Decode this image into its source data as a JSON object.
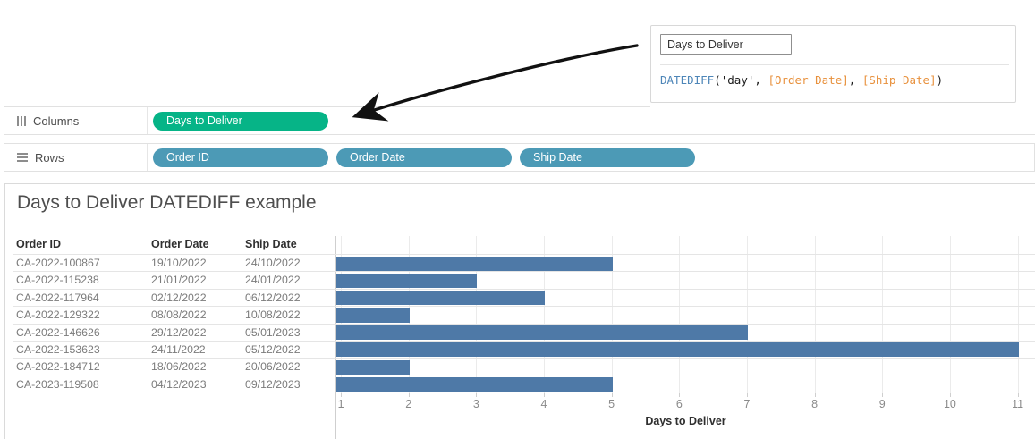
{
  "colors": {
    "measure_pill": "#06b487",
    "dimension_pill": "#4c9ab6",
    "bar": "#4e79a7",
    "function_token": "#4e86b8",
    "field_token": "#e8913d",
    "arrow": "#111111"
  },
  "calc_editor": {
    "field_name_value": "Days to Deliver",
    "formula_tokens": [
      {
        "text": "DATEDIFF",
        "type": "function"
      },
      {
        "text": "('day', ",
        "type": "plain"
      },
      {
        "text": "[Order Date]",
        "type": "field"
      },
      {
        "text": ", ",
        "type": "plain"
      },
      {
        "text": "[Ship Date]",
        "type": "field"
      },
      {
        "text": ")",
        "type": "plain"
      }
    ]
  },
  "shelves": {
    "columns": {
      "label": "Columns",
      "pills": [
        {
          "label": "Days to Deliver",
          "kind": "measure"
        }
      ]
    },
    "rows": {
      "label": "Rows",
      "pills": [
        {
          "label": "Order ID",
          "kind": "dimension"
        },
        {
          "label": "Order Date",
          "kind": "dimension"
        },
        {
          "label": "Ship Date",
          "kind": "dimension"
        }
      ]
    }
  },
  "chart_data": {
    "type": "bar",
    "orientation": "horizontal",
    "title": "Days to Deliver DATEDIFF example",
    "table_headers": [
      "Order ID",
      "Order Date",
      "Ship Date"
    ],
    "rows": [
      {
        "order_id": "CA-2022-100867",
        "order_date": "19/10/2022",
        "ship_date": "24/10/2022",
        "days": 5
      },
      {
        "order_id": "CA-2022-115238",
        "order_date": "21/01/2022",
        "ship_date": "24/01/2022",
        "days": 3
      },
      {
        "order_id": "CA-2022-117964",
        "order_date": "02/12/2022",
        "ship_date": "06/12/2022",
        "days": 4
      },
      {
        "order_id": "CA-2022-129322",
        "order_date": "08/08/2022",
        "ship_date": "10/08/2022",
        "days": 2
      },
      {
        "order_id": "CA-2022-146626",
        "order_date": "29/12/2022",
        "ship_date": "05/01/2023",
        "days": 7
      },
      {
        "order_id": "CA-2022-153623",
        "order_date": "24/11/2022",
        "ship_date": "05/12/2022",
        "days": 11
      },
      {
        "order_id": "CA-2022-184712",
        "order_date": "18/06/2022",
        "ship_date": "20/06/2022",
        "days": 2
      },
      {
        "order_id": "CA-2023-119508",
        "order_date": "04/12/2023",
        "ship_date": "09/12/2023",
        "days": 5
      }
    ],
    "categories": [
      "CA-2022-100867",
      "CA-2022-115238",
      "CA-2022-117964",
      "CA-2022-129322",
      "CA-2022-146626",
      "CA-2022-153623",
      "CA-2022-184712",
      "CA-2023-119508"
    ],
    "values": [
      5,
      3,
      4,
      2,
      7,
      11,
      2,
      5
    ],
    "xlabel": "Days to Deliver",
    "x_ticks": [
      1,
      2,
      3,
      4,
      5,
      6,
      7,
      8,
      9,
      10,
      11
    ],
    "x_range": [
      0.92,
      11.27
    ],
    "grid": true,
    "legend": "none"
  }
}
